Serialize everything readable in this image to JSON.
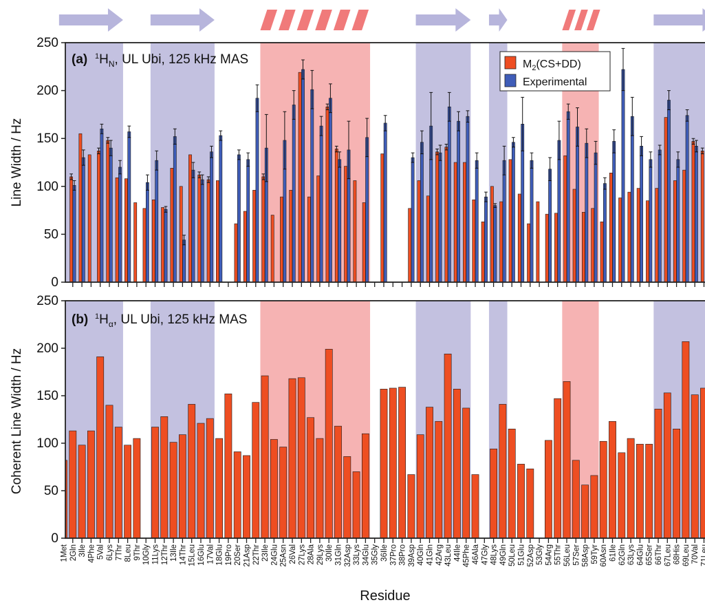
{
  "colors": {
    "sheet": "#b9b6da",
    "helix": "#f4a6a6",
    "helix_icon": "#f07a7a",
    "sheet_arrow": "#b7b5dc",
    "calc": "#ee4e22",
    "exp": "#3f5db8",
    "axis": "#222222"
  },
  "secondary_structure": [
    {
      "type": "sheet",
      "start": 1,
      "end": 7
    },
    {
      "type": "sheet",
      "start": 11,
      "end": 17
    },
    {
      "type": "helix",
      "start": 23,
      "end": 34
    },
    {
      "type": "sheet",
      "start": 40,
      "end": 45
    },
    {
      "type": "sheet",
      "start": 48,
      "end": 49
    },
    {
      "type": "helix",
      "start": 56,
      "end": 59
    },
    {
      "type": "sheet",
      "start": 66,
      "end": 72
    }
  ],
  "residues": [
    "1Met",
    "2Gln",
    "3Ile",
    "4Phe",
    "5Val",
    "6Lys",
    "7Thr",
    "8Leu",
    "9Thr",
    "10Gly",
    "11Lys",
    "12Thr",
    "13Ile",
    "14Thr",
    "15Leu",
    "16Glu",
    "17Val",
    "18Glu",
    "19Pro",
    "20Ser",
    "21Asp",
    "22Thr",
    "23Ile",
    "24Glu",
    "25Asn",
    "26Val",
    "27Lys",
    "28Ala",
    "29Lys",
    "30Ile",
    "31Gln",
    "32Asp",
    "33Lys",
    "34Glu",
    "35Gly",
    "36Ile",
    "37Pro",
    "38Pro",
    "39Asp",
    "40Gln",
    "41Gln",
    "42Arg",
    "43Leu",
    "44Ile",
    "45Phe",
    "46Ala",
    "47Gly",
    "48Lys",
    "49Gln",
    "50Leu",
    "51Glu",
    "52Asp",
    "53Gly",
    "54Arg",
    "55Thr",
    "56Leu",
    "57Ser",
    "58Asp",
    "59Tyr",
    "60Asn",
    "61Ile",
    "62Gln",
    "63Lys",
    "64Glu",
    "65Ser",
    "66Thr",
    "67Leu",
    "68His",
    "69Leu",
    "70Val",
    "71Leu"
  ],
  "x_axis_label": "Residue",
  "chart_data": [
    {
      "type": "bar",
      "panel_label": "(a)",
      "title": "¹H_N, UL Ubi, 125 kHz MAS",
      "ylabel": "Line Width / Hz",
      "ylim": [
        0,
        250
      ],
      "yticks": [
        0,
        50,
        100,
        150,
        200,
        250
      ],
      "legend_position": "top-right",
      "x": [
        1,
        2,
        3,
        4,
        5,
        6,
        7,
        8,
        9,
        10,
        11,
        12,
        13,
        14,
        15,
        16,
        17,
        18,
        19,
        20,
        21,
        22,
        23,
        24,
        25,
        26,
        27,
        28,
        29,
        30,
        31,
        32,
        33,
        34,
        35,
        36,
        37,
        38,
        39,
        40,
        41,
        42,
        43,
        44,
        45,
        46,
        47,
        48,
        49,
        50,
        51,
        52,
        53,
        54,
        55,
        56,
        57,
        58,
        59,
        60,
        61,
        62,
        63,
        64,
        65,
        66,
        67,
        68,
        69,
        70,
        71
      ],
      "series": [
        {
          "name": "M₂(CS+DD)",
          "values": [
            null,
            110,
            155,
            133,
            137,
            148,
            109,
            108,
            83,
            77,
            86,
            78,
            119,
            100,
            133,
            112,
            107,
            106,
            null,
            61,
            74,
            96,
            110,
            70,
            89,
            96,
            219,
            89,
            111,
            183,
            139,
            121,
            106,
            83,
            null,
            134,
            null,
            null,
            77,
            106,
            90,
            136,
            141,
            125,
            125,
            86,
            63,
            100,
            84,
            128,
            92,
            61,
            84,
            71,
            72,
            132,
            97,
            73,
            77,
            63,
            114,
            88,
            94,
            98,
            85,
            98,
            172,
            106,
            117,
            147,
            137
          ],
          "error": [
            null,
            3,
            0,
            0,
            3,
            3,
            0,
            0,
            0,
            0,
            0,
            0,
            0,
            0,
            0,
            3,
            3,
            0,
            null,
            0,
            0,
            0,
            3,
            0,
            0,
            0,
            0,
            0,
            0,
            3,
            3,
            0,
            0,
            0,
            null,
            0,
            null,
            null,
            0,
            0,
            0,
            3,
            3,
            0,
            0,
            0,
            0,
            0,
            0,
            0,
            0,
            0,
            0,
            0,
            0,
            0,
            0,
            0,
            0,
            0,
            0,
            0,
            0,
            0,
            0,
            0,
            0,
            0,
            0,
            3,
            3
          ]
        },
        {
          "name": "Experimental",
          "values": [
            null,
            101,
            130,
            null,
            160,
            140,
            120,
            157,
            null,
            104,
            127,
            76,
            152,
            44,
            117,
            107,
            136,
            153,
            null,
            133,
            128,
            192,
            140,
            null,
            148,
            185,
            222,
            201,
            163,
            192,
            128,
            138,
            null,
            151,
            null,
            166,
            null,
            null,
            130,
            146,
            163,
            135,
            183,
            168,
            173,
            127,
            89,
            80,
            127,
            146,
            165,
            127,
            null,
            118,
            148,
            178,
            162,
            145,
            135,
            103,
            147,
            222,
            173,
            142,
            128,
            138,
            190,
            128,
            174,
            142,
            null
          ],
          "error": [
            null,
            5,
            8,
            null,
            5,
            8,
            7,
            6,
            null,
            8,
            10,
            3,
            8,
            5,
            8,
            5,
            6,
            5,
            null,
            5,
            7,
            14,
            35,
            null,
            30,
            15,
            10,
            20,
            10,
            15,
            8,
            30,
            null,
            20,
            null,
            8,
            null,
            null,
            5,
            12,
            35,
            8,
            15,
            10,
            6,
            8,
            5,
            2,
            15,
            5,
            28,
            8,
            null,
            12,
            20,
            8,
            20,
            15,
            12,
            6,
            12,
            22,
            20,
            10,
            8,
            5,
            10,
            8,
            6,
            6,
            null
          ]
        }
      ]
    },
    {
      "type": "bar",
      "panel_label": "(b)",
      "title": "¹H_α, UL Ubi, 125 kHz MAS",
      "ylabel": "Coherent Line Width / Hz",
      "ylim": [
        0,
        250
      ],
      "yticks": [
        0,
        50,
        100,
        150,
        200,
        250
      ],
      "x": [
        1,
        2,
        3,
        4,
        5,
        6,
        7,
        8,
        9,
        10,
        11,
        12,
        13,
        14,
        15,
        16,
        17,
        18,
        19,
        20,
        21,
        22,
        23,
        24,
        25,
        26,
        27,
        28,
        29,
        30,
        31,
        32,
        33,
        34,
        35,
        36,
        37,
        38,
        39,
        40,
        41,
        42,
        43,
        44,
        45,
        46,
        47,
        48,
        49,
        50,
        51,
        52,
        53,
        54,
        55,
        56,
        57,
        58,
        59,
        60,
        61,
        62,
        63,
        64,
        65,
        66,
        67,
        68,
        69,
        70,
        71
      ],
      "series": [
        {
          "values": [
            82,
            113,
            98,
            113,
            191,
            140,
            117,
            98,
            105,
            null,
            117,
            128,
            101,
            109,
            141,
            121,
            126,
            105,
            152,
            91,
            87,
            143,
            171,
            104,
            96,
            168,
            169,
            127,
            105,
            199,
            118,
            86,
            70,
            110,
            null,
            157,
            158,
            159,
            67,
            109,
            138,
            123,
            194,
            157,
            137,
            67,
            null,
            94,
            141,
            115,
            78,
            73,
            null,
            103,
            147,
            165,
            82,
            56,
            66,
            102,
            123,
            90,
            105,
            99,
            99,
            136,
            153,
            115,
            207,
            151,
            158
          ]
        }
      ]
    }
  ]
}
